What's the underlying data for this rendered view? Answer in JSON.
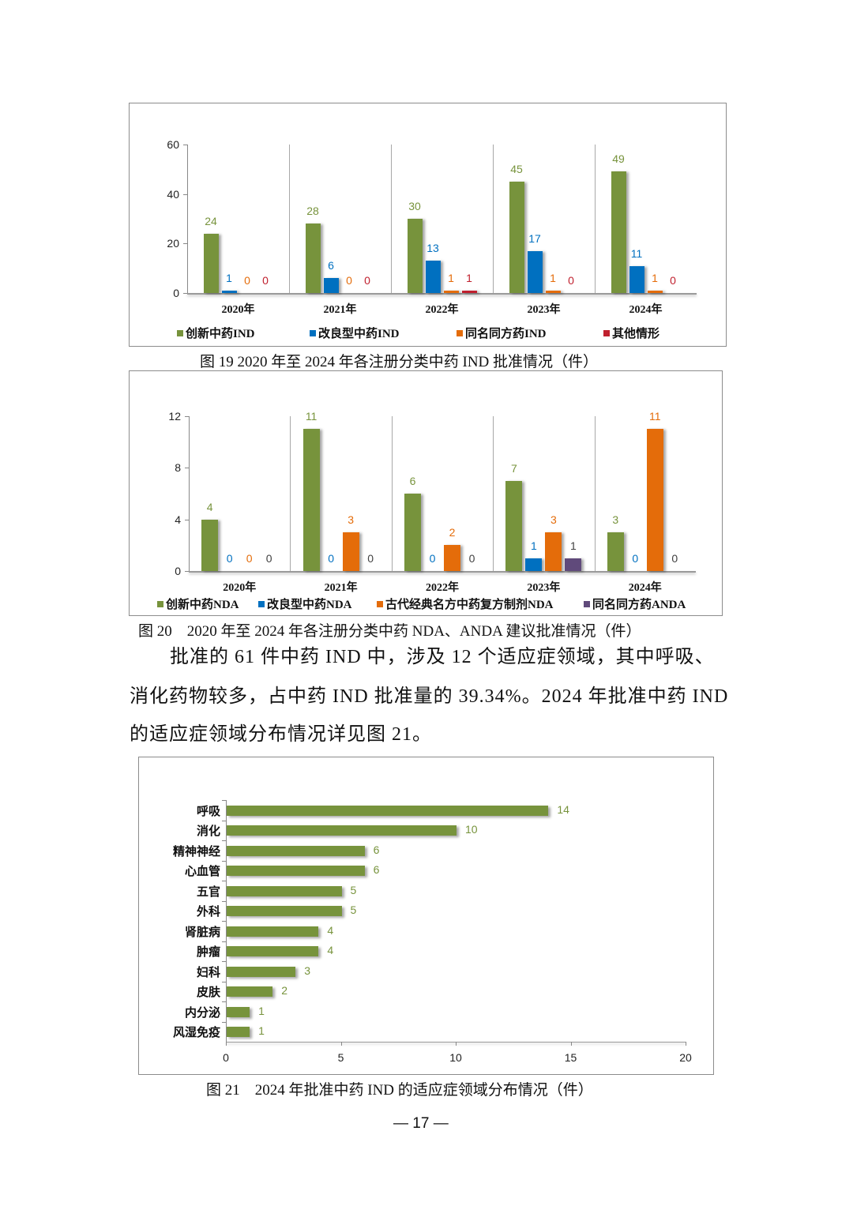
{
  "colors": {
    "green": "#77933c",
    "blue": "#0070c0",
    "orange": "#e46c0a",
    "red": "#c0202e",
    "purple": "#604a7b",
    "gray_label": "#404040"
  },
  "fig19": {
    "caption": "图 19 2020 年至 2024 年各注册分类中药 IND 批准情况（件）",
    "legend": [
      "创新中药IND",
      "改良型中药IND",
      "同名同方药IND",
      "其他情形"
    ]
  },
  "fig20": {
    "caption": "图 20　2020 年至 2024 年各注册分类中药 NDA、ANDA 建议批准情况（件）",
    "legend": [
      "创新中药NDA",
      "改良型中药NDA",
      "古代经典名方中药复方制剂NDA",
      "同名同方药ANDA"
    ]
  },
  "paragraph": {
    "line1": "批准的 61 件中药 IND 中，涉及 12 个适应症领域，其中呼吸、",
    "line2": "消化药物较多，占中药 IND 批准量的 39.34%。2024 年批准中药 IND",
    "line3": "的适应症领域分布情况详见图 21。"
  },
  "fig21": {
    "caption": "图 21　2024 年批准中药 IND 的适应症领域分布情况（件）"
  },
  "page_number": "— 17 —",
  "chart_data": [
    {
      "type": "bar",
      "title": "图 19 2020 年至 2024 年各注册分类中药 IND 批准情况（件）",
      "categories": [
        "2020年",
        "2021年",
        "2022年",
        "2023年",
        "2024年"
      ],
      "series": [
        {
          "name": "创新中药IND",
          "values": [
            24,
            28,
            30,
            45,
            49
          ]
        },
        {
          "name": "改良型中药IND",
          "values": [
            1,
            6,
            13,
            17,
            11
          ]
        },
        {
          "name": "同名同方药IND",
          "values": [
            0,
            0,
            1,
            1,
            1
          ]
        },
        {
          "name": "其他情形",
          "values": [
            0,
            0,
            1,
            0,
            0
          ]
        }
      ],
      "yticks": [
        0,
        20,
        40,
        60
      ],
      "ylim": [
        0,
        60
      ],
      "xlabel": "",
      "ylabel": "",
      "legend_position": "bottom",
      "grid": false
    },
    {
      "type": "bar",
      "title": "图 20 2020 年至 2024 年各注册分类中药 NDA、ANDA 建议批准情况（件）",
      "categories": [
        "2020年",
        "2021年",
        "2022年",
        "2023年",
        "2024年"
      ],
      "series": [
        {
          "name": "创新中药NDA",
          "values": [
            4,
            11,
            6,
            7,
            3
          ]
        },
        {
          "name": "改良型中药NDA",
          "values": [
            0,
            0,
            0,
            1,
            0
          ]
        },
        {
          "name": "古代经典名方中药复方制剂NDA",
          "values": [
            0,
            3,
            2,
            3,
            11
          ]
        },
        {
          "name": "同名同方药ANDA",
          "values": [
            0,
            0,
            0,
            1,
            0
          ]
        }
      ],
      "yticks": [
        0,
        4,
        8,
        12
      ],
      "ylim": [
        0,
        12
      ],
      "xlabel": "",
      "ylabel": "",
      "legend_position": "bottom",
      "grid": false
    },
    {
      "type": "bar",
      "orientation": "horizontal",
      "title": "图 21 2024 年批准中药 IND 的适应症领域分布情况（件）",
      "categories": [
        "呼吸",
        "消化",
        "精神神经",
        "心血管",
        "五官",
        "外科",
        "肾脏病",
        "肿瘤",
        "妇科",
        "皮肤",
        "内分泌",
        "风湿免疫"
      ],
      "values": [
        14,
        10,
        6,
        6,
        5,
        5,
        4,
        4,
        3,
        2,
        1,
        1
      ],
      "xticks": [
        0,
        5,
        10,
        15,
        20
      ],
      "xlim": [
        0,
        20
      ],
      "xlabel": "",
      "ylabel": "",
      "grid": false
    }
  ]
}
